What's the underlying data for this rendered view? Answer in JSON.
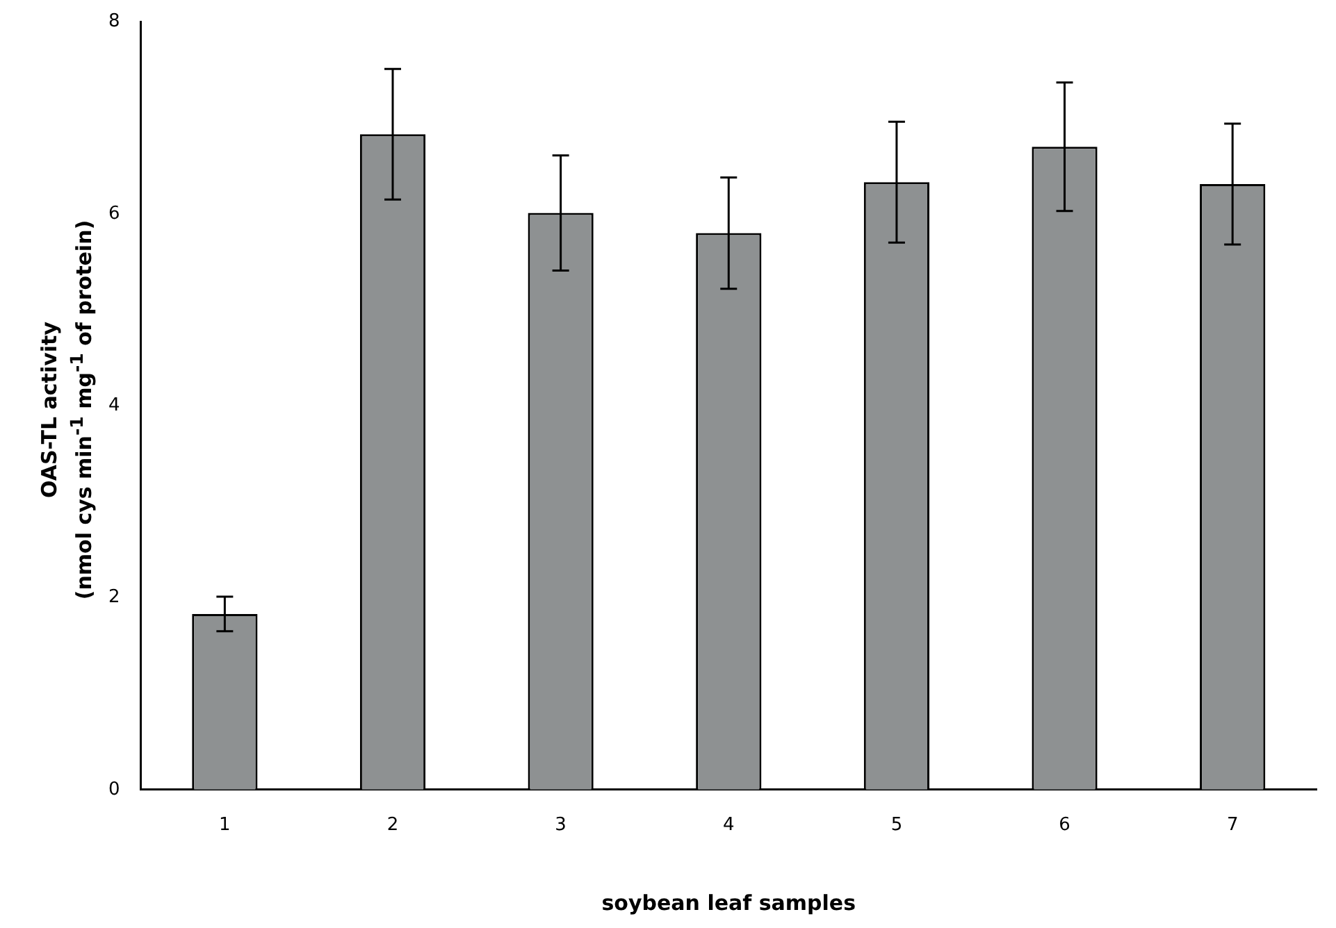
{
  "chart_data": {
    "type": "bar",
    "xlabel": "soybean leaf samples",
    "ylabel": "OAS-TL activity\n(nmol cys min$^{-1}$ mg$^{-1}$ of protein)",
    "categories": [
      "1",
      "2",
      "3",
      "4",
      "5",
      "6",
      "7"
    ],
    "values": [
      1.83,
      6.83,
      6.01,
      5.8,
      6.33,
      6.7,
      6.31
    ],
    "errors": [
      0.18,
      0.68,
      0.6,
      0.58,
      0.63,
      0.67,
      0.63
    ],
    "color": "#8e9192",
    "ylim": [
      0,
      8
    ],
    "yticks": [
      0,
      2,
      4,
      6,
      8
    ],
    "grid": false,
    "legend": false
  }
}
